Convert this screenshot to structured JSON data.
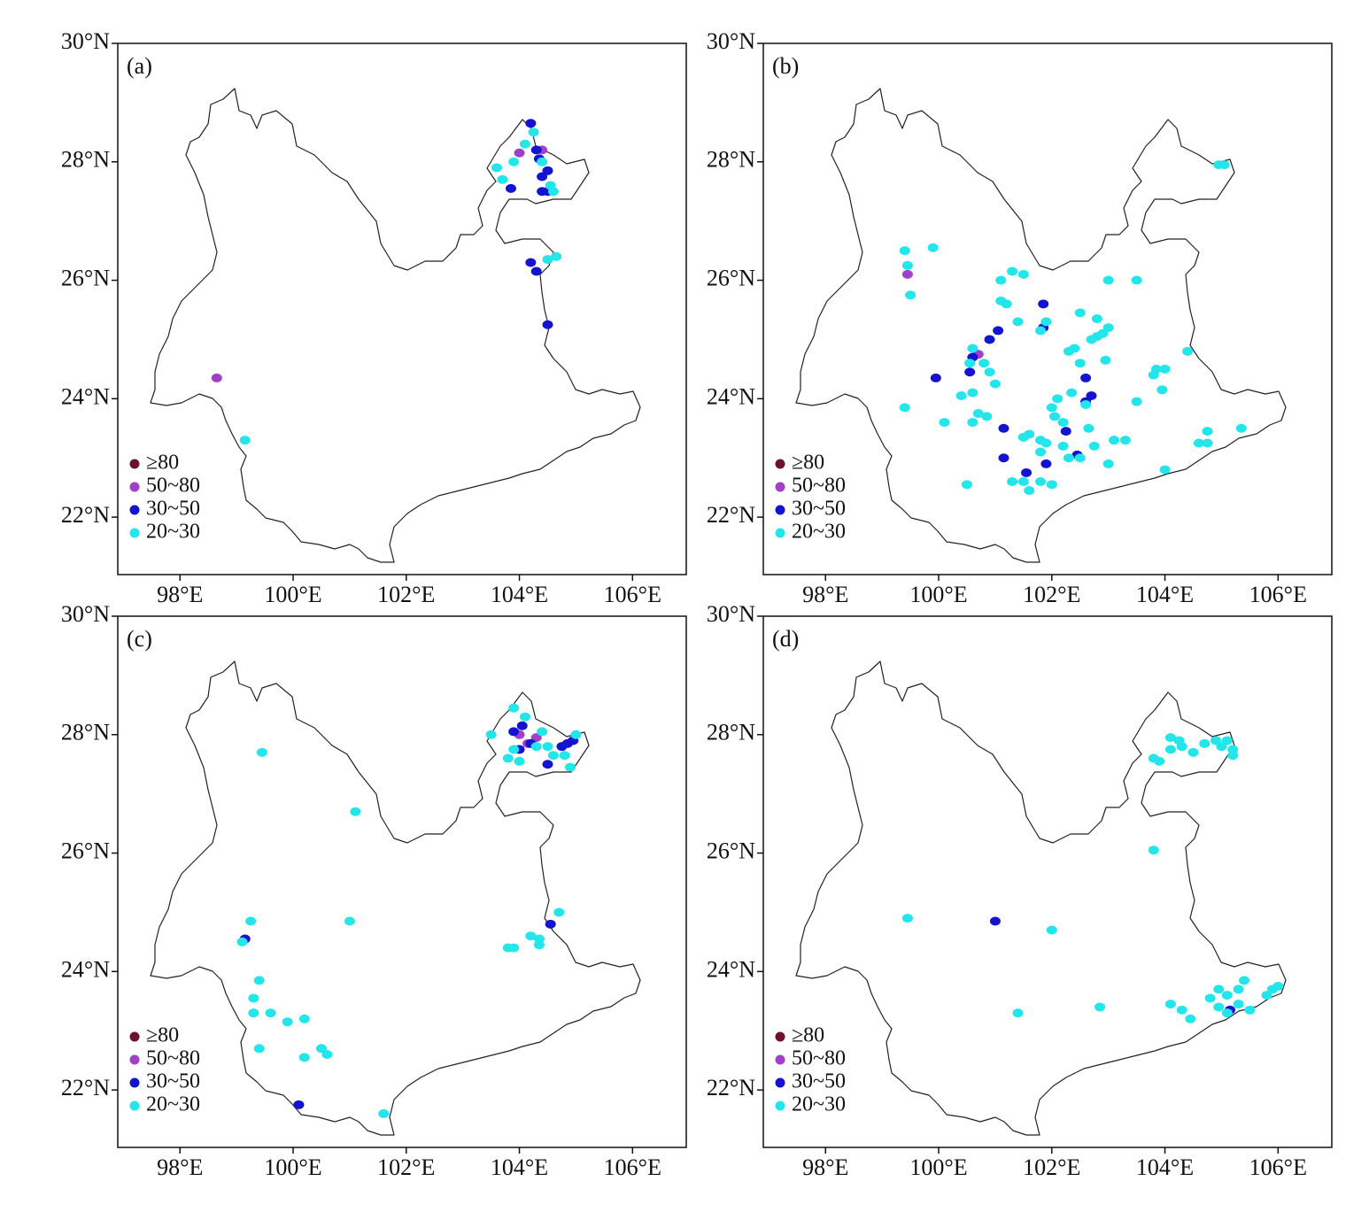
{
  "chart_data": [
    {
      "type": "scatter",
      "label": "(a)",
      "xlim": [
        96.9,
        106.95
      ],
      "ylim": [
        21.03,
        30
      ],
      "xticks": [
        {
          "value": 98,
          "label": "98°E"
        },
        {
          "value": 100,
          "label": "100°E"
        },
        {
          "value": 102,
          "label": "102°E"
        },
        {
          "value": 104,
          "label": "104°E"
        },
        {
          "value": 106,
          "label": "106°E"
        }
      ],
      "yticks": [
        {
          "value": 22,
          "label": "22°N"
        },
        {
          "value": 24,
          "label": "24°N"
        },
        {
          "value": 26,
          "label": "26°N"
        },
        {
          "value": 28,
          "label": "28°N"
        },
        {
          "value": 30,
          "label": "30°N"
        }
      ],
      "legend": "lower left",
      "series": [
        {
          "name": "≥80",
          "color": "#6e1030",
          "x": [],
          "y": []
        },
        {
          "name": "50~80",
          "color": "#a040c8",
          "x": [
            104.0,
            104.4,
            98.65
          ],
          "y": [
            28.15,
            28.2,
            24.35
          ]
        },
        {
          "name": "30~50",
          "color": "#1414d0",
          "x": [
            104.2,
            104.3,
            104.35,
            104.5,
            104.4,
            103.85,
            104.4,
            104.5,
            104.2,
            104.3,
            104.5
          ],
          "y": [
            28.65,
            28.2,
            28.05,
            27.85,
            27.75,
            27.55,
            27.5,
            27.5,
            26.3,
            26.15,
            25.25
          ]
        },
        {
          "name": "20~30",
          "color": "#22e6ea",
          "x": [
            103.6,
            103.7,
            103.9,
            104.1,
            104.25,
            104.4,
            104.55,
            104.6,
            104.5,
            104.65,
            99.15
          ],
          "y": [
            27.9,
            27.7,
            28.0,
            28.3,
            28.5,
            28.0,
            27.6,
            27.5,
            26.35,
            26.4,
            23.3
          ]
        }
      ]
    },
    {
      "type": "scatter",
      "label": "(b)",
      "xlim": [
        96.9,
        106.95
      ],
      "ylim": [
        21.03,
        30
      ],
      "xticks": [
        {
          "value": 98,
          "label": "98°E"
        },
        {
          "value": 100,
          "label": "100°E"
        },
        {
          "value": 102,
          "label": "102°E"
        },
        {
          "value": 104,
          "label": "104°E"
        },
        {
          "value": 106,
          "label": "106°E"
        }
      ],
      "yticks": [
        {
          "value": 22,
          "label": "22°N"
        },
        {
          "value": 24,
          "label": "24°N"
        },
        {
          "value": 26,
          "label": "26°N"
        },
        {
          "value": 28,
          "label": "28°N"
        },
        {
          "value": 30,
          "label": "30°N"
        }
      ],
      "legend": "lower left",
      "series": [
        {
          "name": "≥80",
          "color": "#6e1030",
          "x": [],
          "y": []
        },
        {
          "name": "50~80",
          "color": "#a040c8",
          "x": [
            99.45,
            100.7
          ],
          "y": [
            26.1,
            24.75
          ]
        },
        {
          "name": "30~50",
          "color": "#1414d0",
          "x": [
            101.85,
            101.85,
            101.05,
            100.9,
            100.6,
            100.55,
            99.95,
            101.15,
            101.15,
            101.55,
            101.9,
            102.25,
            102.45,
            102.6,
            102.7,
            102.6
          ],
          "y": [
            25.6,
            25.2,
            25.15,
            25.0,
            24.7,
            24.45,
            24.35,
            23.5,
            23.0,
            22.75,
            22.9,
            23.45,
            23.05,
            24.35,
            24.05,
            23.95
          ]
        },
        {
          "name": "20~30",
          "color": "#22e6ea",
          "x": [
            104.95,
            105.05,
            99.4,
            99.45,
            99.5,
            99.9,
            99.4,
            100.1,
            100.5,
            101.1,
            101.3,
            101.5,
            101.1,
            101.2,
            101.4,
            101.8,
            101.9,
            100.6,
            100.55,
            100.8,
            100.9,
            100.4,
            100.6,
            100.7,
            100.85,
            100.6,
            101.0,
            101.3,
            101.5,
            101.6,
            101.8,
            101.9,
            102.0,
            102.05,
            102.2,
            102.3,
            102.5,
            101.5,
            101.6,
            101.8,
            102.0,
            102.3,
            102.4,
            102.5,
            102.7,
            102.8,
            102.9,
            103.0,
            102.5,
            102.8,
            102.95,
            102.35,
            102.6,
            102.65,
            102.75,
            103.1,
            103.3,
            103.0,
            103.5,
            103.5,
            103.8,
            103.85,
            104.0,
            103.95,
            104.4,
            104.6,
            104.75,
            104.75,
            104.0,
            105.35,
            103.0,
            102.2,
            102.1,
            101.8
          ],
          "y": [
            27.95,
            27.95,
            26.5,
            26.25,
            25.75,
            26.55,
            23.85,
            23.6,
            22.55,
            26.0,
            26.15,
            26.1,
            25.65,
            25.6,
            25.3,
            25.15,
            25.3,
            24.85,
            24.6,
            24.6,
            24.45,
            24.05,
            24.1,
            23.75,
            23.7,
            23.6,
            24.25,
            22.6,
            23.35,
            23.4,
            23.3,
            23.25,
            23.85,
            23.7,
            23.2,
            23.0,
            23.0,
            22.6,
            22.45,
            22.6,
            22.55,
            24.8,
            24.85,
            24.6,
            25.0,
            25.05,
            25.1,
            25.2,
            25.45,
            25.35,
            24.65,
            24.1,
            23.9,
            23.5,
            23.2,
            23.3,
            23.3,
            26.0,
            26.0,
            23.95,
            24.4,
            24.5,
            24.5,
            24.15,
            24.8,
            23.25,
            23.25,
            23.45,
            22.8,
            23.5,
            22.9,
            23.6,
            24.0,
            23.1
          ]
        }
      ]
    },
    {
      "type": "scatter",
      "label": "(c)",
      "xlim": [
        96.9,
        106.95
      ],
      "ylim": [
        21.03,
        30
      ],
      "xticks": [
        {
          "value": 98,
          "label": "98°E"
        },
        {
          "value": 100,
          "label": "100°E"
        },
        {
          "value": 102,
          "label": "102°E"
        },
        {
          "value": 104,
          "label": "104°E"
        },
        {
          "value": 106,
          "label": "106°E"
        }
      ],
      "yticks": [
        {
          "value": 22,
          "label": "22°N"
        },
        {
          "value": 24,
          "label": "24°N"
        },
        {
          "value": 26,
          "label": "26°N"
        },
        {
          "value": 28,
          "label": "28°N"
        },
        {
          "value": 30,
          "label": "30°N"
        }
      ],
      "legend": "lower left",
      "series": [
        {
          "name": "≥80",
          "color": "#6e1030",
          "x": [],
          "y": []
        },
        {
          "name": "50~80",
          "color": "#a040c8",
          "x": [
            104.0,
            104.3,
            104.15
          ],
          "y": [
            28.0,
            27.95,
            27.85
          ]
        },
        {
          "name": "30~50",
          "color": "#1414d0",
          "x": [
            103.9,
            104.05,
            104.2,
            104.0,
            104.5,
            104.85,
            104.95,
            104.75,
            99.15,
            100.1,
            104.55
          ],
          "y": [
            28.05,
            28.15,
            27.85,
            27.75,
            27.5,
            27.85,
            27.9,
            27.8,
            24.55,
            21.75,
            24.8
          ]
        },
        {
          "name": "20~30",
          "color": "#22e6ea",
          "x": [
            103.5,
            103.9,
            104.1,
            104.4,
            103.8,
            103.9,
            104.0,
            104.3,
            104.6,
            104.8,
            104.9,
            105.0,
            104.5,
            99.45,
            101.1,
            99.25,
            101.0,
            99.1,
            99.4,
            99.3,
            99.3,
            99.6,
            99.9,
            100.2,
            99.4,
            100.2,
            100.5,
            100.6,
            101.6,
            103.8,
            103.9,
            104.2,
            104.35,
            104.7,
            104.35
          ],
          "y": [
            28.0,
            28.45,
            28.3,
            28.05,
            27.6,
            27.75,
            27.55,
            27.8,
            27.65,
            27.65,
            27.45,
            28.0,
            27.8,
            27.7,
            26.7,
            24.85,
            24.85,
            24.5,
            23.85,
            23.55,
            23.3,
            23.3,
            23.15,
            23.2,
            22.7,
            22.55,
            22.7,
            22.6,
            21.6,
            24.4,
            24.4,
            24.6,
            24.55,
            25.0,
            24.45
          ]
        }
      ]
    },
    {
      "type": "scatter",
      "label": "(d)",
      "xlim": [
        96.9,
        106.95
      ],
      "ylim": [
        21.03,
        30
      ],
      "xticks": [
        {
          "value": 98,
          "label": "98°E"
        },
        {
          "value": 100,
          "label": "100°E"
        },
        {
          "value": 102,
          "label": "102°E"
        },
        {
          "value": 104,
          "label": "104°E"
        },
        {
          "value": 106,
          "label": "106°E"
        }
      ],
      "yticks": [
        {
          "value": 22,
          "label": "22°N"
        },
        {
          "value": 24,
          "label": "24°N"
        },
        {
          "value": 26,
          "label": "26°N"
        },
        {
          "value": 28,
          "label": "28°N"
        },
        {
          "value": 30,
          "label": "30°N"
        }
      ],
      "legend": "lower left",
      "series": [
        {
          "name": "≥80",
          "color": "#6e1030",
          "x": [],
          "y": []
        },
        {
          "name": "50~80",
          "color": "#a040c8",
          "x": [],
          "y": []
        },
        {
          "name": "30~50",
          "color": "#1414d0",
          "x": [
            101.0,
            105.15
          ],
          "y": [
            24.85,
            23.35
          ]
        },
        {
          "name": "20~30",
          "color": "#22e6ea",
          "x": [
            104.1,
            104.25,
            104.3,
            104.1,
            103.8,
            103.9,
            104.5,
            104.7,
            104.9,
            105.1,
            105.0,
            105.2,
            105.2,
            103.8,
            99.45,
            102.0,
            101.4,
            102.85,
            104.1,
            104.3,
            104.45,
            104.8,
            104.95,
            105.1,
            105.3,
            105.4,
            105.3,
            105.1,
            105.5,
            105.9,
            106.0,
            105.8,
            104.95
          ],
          "y": [
            27.95,
            27.9,
            27.8,
            27.75,
            27.6,
            27.55,
            27.7,
            27.85,
            27.9,
            27.9,
            27.8,
            27.75,
            27.65,
            26.05,
            24.9,
            24.7,
            23.3,
            23.4,
            23.45,
            23.35,
            23.2,
            23.55,
            23.7,
            23.6,
            23.7,
            23.85,
            23.45,
            23.3,
            23.35,
            23.7,
            23.75,
            23.6,
            23.4
          ]
        }
      ]
    }
  ]
}
